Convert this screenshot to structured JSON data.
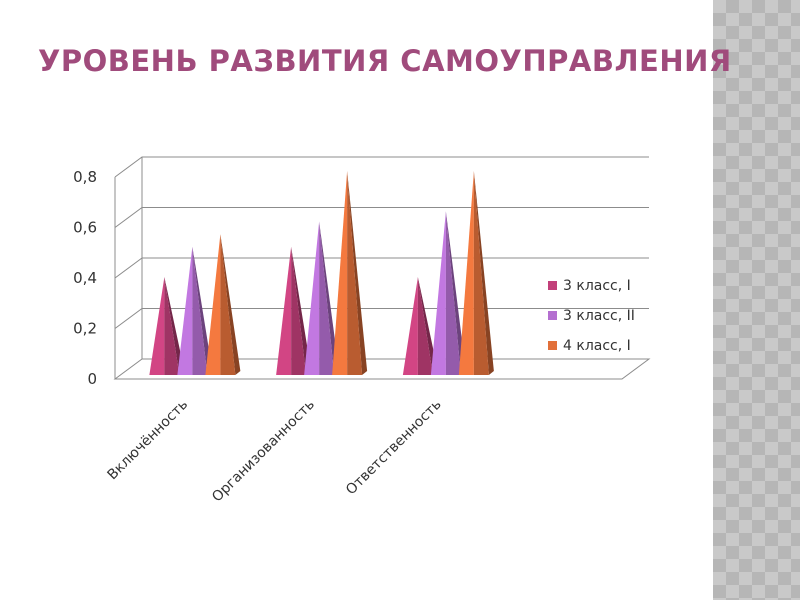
{
  "slide": {
    "title": "УРОВЕНЬ РАЗВИТИЯ САМОУПРАВЛЕНИЯ"
  },
  "chart_data": {
    "type": "bar",
    "bar_shape": "3d-cone",
    "categories": [
      "Включённость",
      "Организованность",
      "Ответственность"
    ],
    "series": [
      {
        "name": "3 класс, I",
        "color": "#c2407a",
        "values": [
          0.38,
          0.5,
          0.38
        ]
      },
      {
        "name": "3 класс, II",
        "color": "#b46fd0",
        "values": [
          0.5,
          0.6,
          0.64
        ]
      },
      {
        "name": "4 класс, I",
        "color": "#e2703a",
        "values": [
          0.55,
          0.8,
          0.8
        ]
      }
    ],
    "y_ticks": [
      "0",
      "0,2",
      "0,4",
      "0,6",
      "0,8"
    ],
    "ylim": [
      0,
      0.8
    ],
    "grid": true,
    "legend_position": "right"
  }
}
